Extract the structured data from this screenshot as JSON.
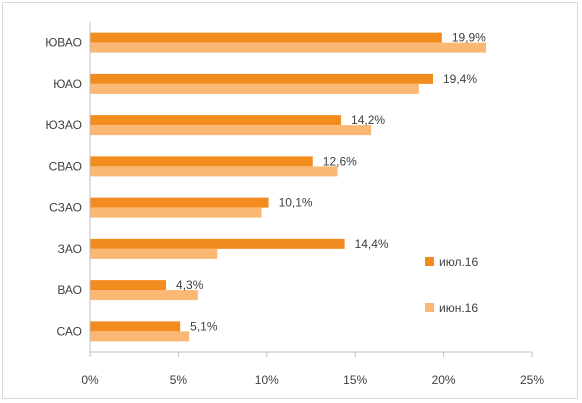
{
  "chart_data": {
    "type": "bar",
    "orientation": "horizontal",
    "categories": [
      "ЮВАО",
      "ЮАО",
      "ЮЗАО",
      "СВАО",
      "СЗАО",
      "ЗАО",
      "ВАО",
      "САО"
    ],
    "series": [
      {
        "name": "июл.16",
        "color": "#f28c1e",
        "values": [
          19.9,
          19.4,
          14.2,
          12.6,
          10.1,
          14.4,
          4.3,
          5.1
        ],
        "labels": [
          "19,9%",
          "19,4%",
          "14,2%",
          "12,6%",
          "10,1%",
          "14,4%",
          "4,3%",
          "5,1%"
        ]
      },
      {
        "name": "июн.16",
        "color": "#fbb774",
        "values": [
          22.4,
          18.6,
          15.9,
          14.0,
          9.7,
          7.2,
          6.1,
          5.6
        ]
      }
    ],
    "xlim": [
      0,
      25
    ],
    "xticks": [
      0,
      5,
      10,
      15,
      20,
      25
    ],
    "xtick_labels": [
      "0%",
      "5%",
      "10%",
      "15%",
      "20%",
      "25%"
    ],
    "grid": false,
    "legend_position": "right"
  }
}
